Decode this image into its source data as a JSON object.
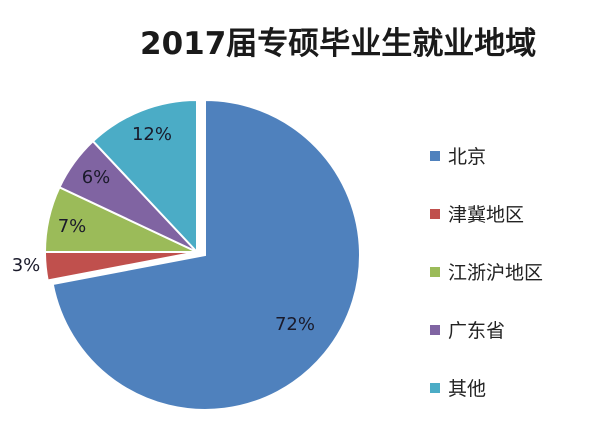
{
  "chart_data": {
    "type": "pie",
    "title": "2017届专硕毕业生就业地域",
    "categories": [
      "北京",
      "津冀地区",
      "江浙沪地区",
      "广东省",
      "其他"
    ],
    "values": [
      72,
      3,
      7,
      6,
      12
    ],
    "labels": [
      "72%",
      "3%",
      "7%",
      "6%",
      "12%"
    ],
    "colors": [
      "#4F81BD",
      "#C0504D",
      "#9BBB59",
      "#8064A2",
      "#4BACC6"
    ],
    "legend_position": "right"
  }
}
